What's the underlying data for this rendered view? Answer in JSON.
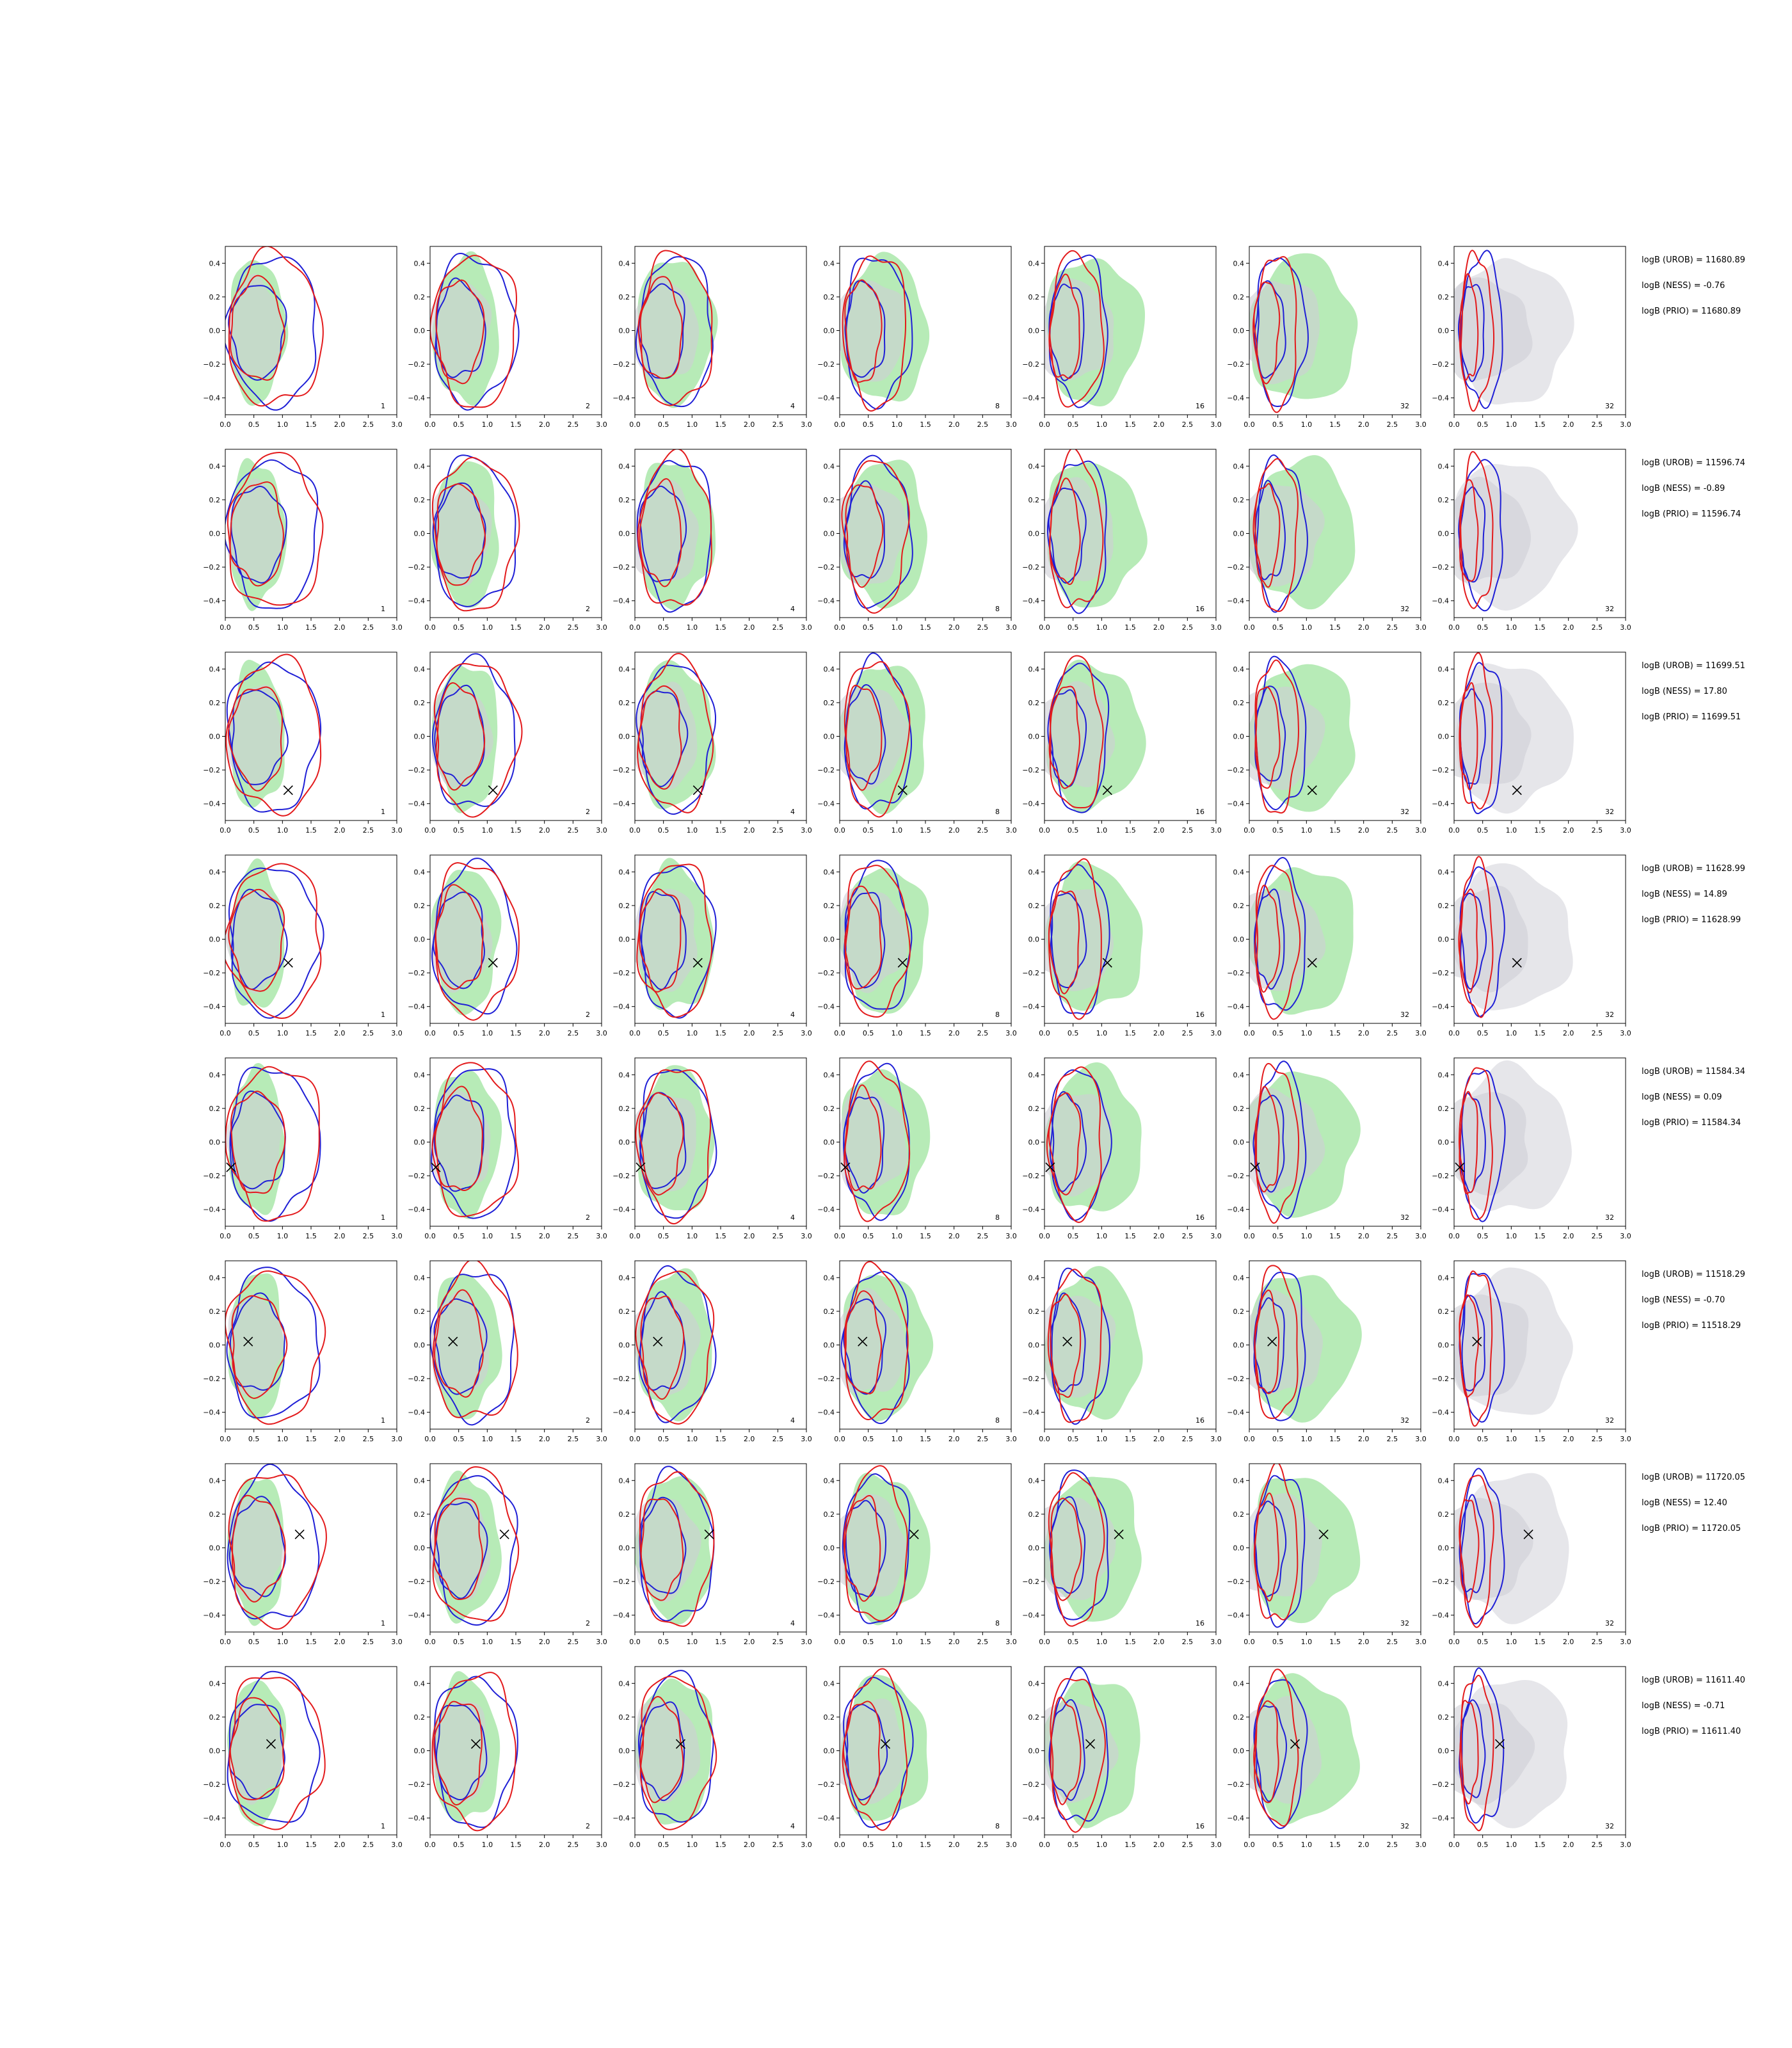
{
  "chart_data": {
    "type": "contour",
    "xlim": [
      0,
      3.0
    ],
    "ylim": [
      -0.5,
      0.5
    ],
    "x_ticks": [
      "0.0",
      "0.5",
      "1.0",
      "1.5",
      "2.0",
      "2.5",
      "3.0"
    ],
    "y_ticks": [
      "0.4",
      "0.2",
      "0.0",
      "−0.2",
      "−0.4"
    ],
    "y_tick_values": [
      0.4,
      0.2,
      0.0,
      -0.2,
      -0.4
    ],
    "x_tick_values": [
      0,
      0.5,
      1.0,
      1.5,
      2.0,
      2.5,
      3.0
    ],
    "grid": false,
    "colors": {
      "red_contour": "#e31a1c",
      "blue_contour": "#1f1fd6",
      "green_fill": "#b7ebb7",
      "grey_fill": "#cfcfd6",
      "light_grey_fill": "#e6e6ea",
      "marker": "#000000"
    },
    "column_labels": [
      "1",
      "2",
      "4",
      "8",
      "16",
      "32",
      "32"
    ],
    "rows": [
      {
        "marker": null,
        "annotations": [
          "logB (UROB) = 11680.89",
          "logB (NESS) = -0.76",
          "logB (PRIO) = 11680.89"
        ]
      },
      {
        "marker": null,
        "annotations": [
          "logB (UROB) = 11596.74",
          "logB (NESS) = -0.89",
          "logB (PRIO) = 11596.74"
        ]
      },
      {
        "marker": [
          1.1,
          -0.32
        ],
        "annotations": [
          "logB (UROB) = 11699.51",
          "logB (NESS) = 17.80",
          "logB (PRIO) = 11699.51"
        ]
      },
      {
        "marker": [
          1.1,
          -0.14
        ],
        "annotations": [
          "logB (UROB) = 11628.99",
          "logB (NESS) = 14.89",
          "logB (PRIO) = 11628.99"
        ]
      },
      {
        "marker": [
          0.1,
          -0.15
        ],
        "annotations": [
          "logB (UROB) = 11584.34",
          "logB (NESS) = 0.09",
          "logB (PRIO) = 11584.34"
        ]
      },
      {
        "marker": [
          0.4,
          0.02
        ],
        "annotations": [
          "logB (UROB) = 11518.29",
          "logB (NESS) = -0.70",
          "logB (PRIO) = 11518.29"
        ]
      },
      {
        "marker": [
          1.3,
          0.08
        ],
        "annotations": [
          "logB (UROB) = 11720.05",
          "logB (NESS) = 12.40",
          "logB (PRIO) = 11720.05"
        ]
      },
      {
        "marker": [
          0.8,
          0.04
        ],
        "annotations": [
          "logB (UROB) = 11611.40",
          "logB (NESS) = -0.71",
          "logB (PRIO) = 11611.40"
        ]
      }
    ]
  }
}
